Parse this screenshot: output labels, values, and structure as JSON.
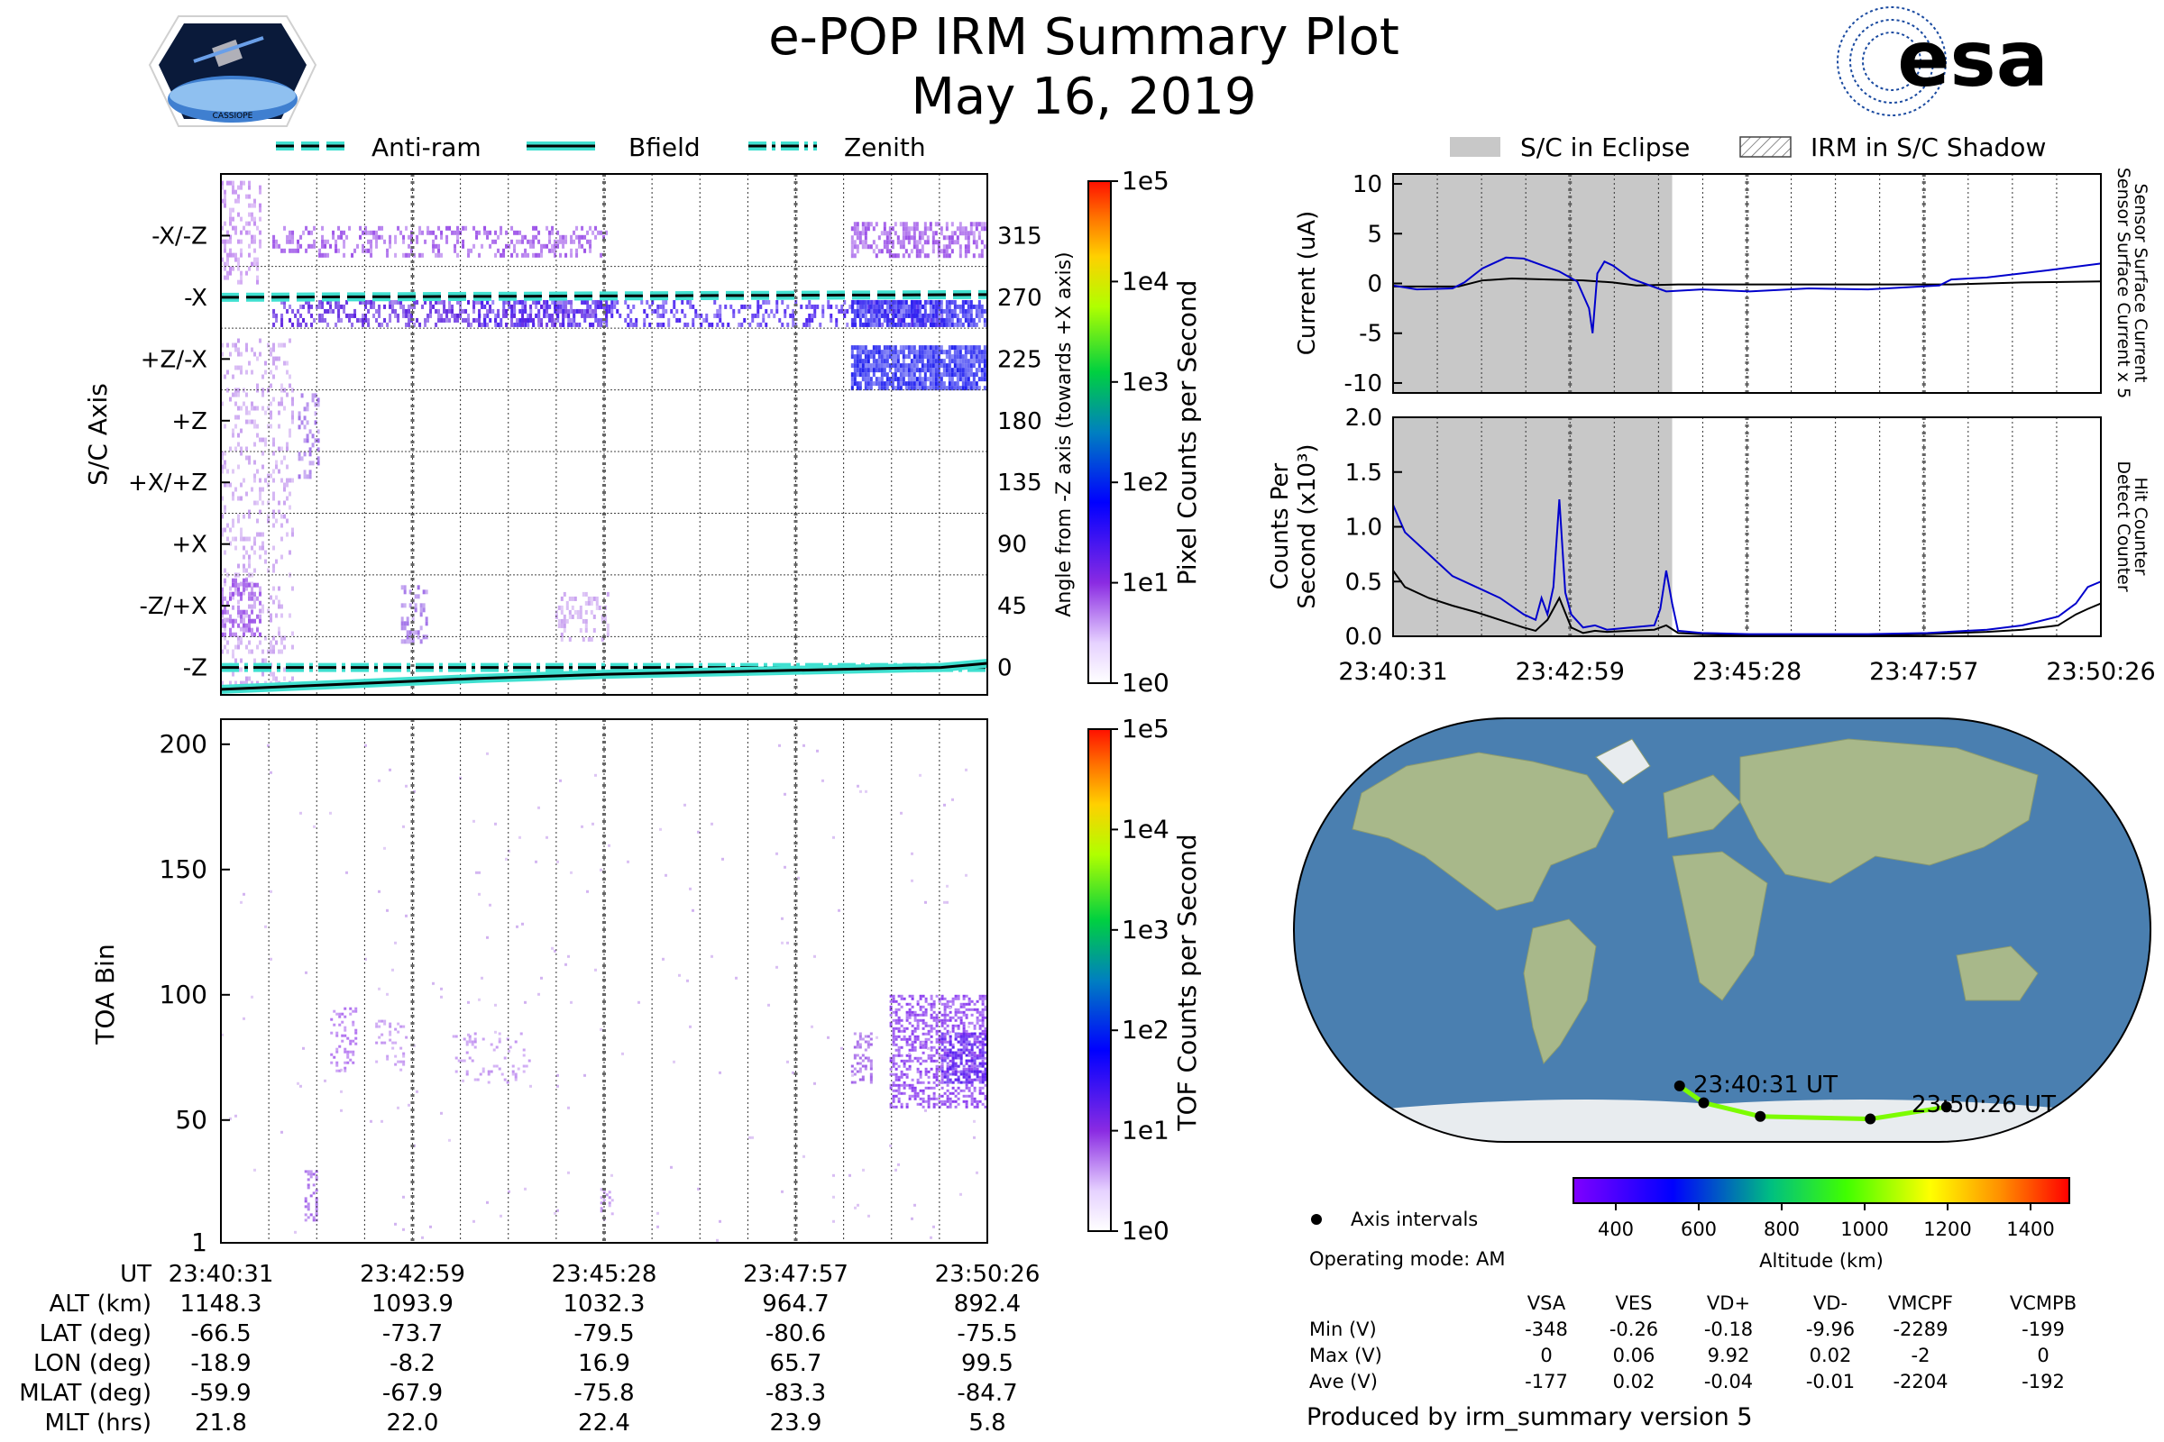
{
  "header": {
    "title": "e-POP IRM Summary Plot",
    "date": "May 16, 2019",
    "left_logo_text": "CASSIOPE",
    "right_logo_text": "esa"
  },
  "legend_top_left": {
    "anti_ram": "Anti-ram",
    "bfield": "Bfield",
    "zenith": "Zenith"
  },
  "legend_top_right": {
    "eclipse": "S/C in Eclipse",
    "shadow": "IRM in S/C Shadow"
  },
  "colors": {
    "accent_teal": "#40e0d0",
    "eclipse_gray": "#c8c8c8",
    "sensor_blue": "#0000cc",
    "track_green": "#7cfc00",
    "counts_purple": "#8a2be2"
  },
  "chart_data": [
    {
      "id": "sc_axis",
      "type": "heatmap",
      "ylabel": "S/C Axis",
      "y2label": "Angle from -Z axis (towards +X axis)",
      "y_categories": [
        "-X/-Z",
        "-X",
        "+Z/-X",
        "+Z",
        "+X/+Z",
        "+X",
        "-Z/+X",
        "-Z"
      ],
      "y2_ticks": [
        "315",
        "270",
        "225",
        "180",
        "135",
        "90",
        "45",
        "0"
      ],
      "ylim": [
        -20,
        360
      ],
      "xlim": [
        0,
        596
      ],
      "colorbar": {
        "label": "Pixel Counts per Second",
        "ticks": [
          "1e5",
          "1e4",
          "1e3",
          "1e2",
          "1e1",
          "1e0"
        ]
      },
      "lines": [
        {
          "name": "Anti-ram",
          "x": [
            0,
            596
          ],
          "y": [
            270,
            272
          ]
        },
        {
          "name": "Zenith",
          "x": [
            0,
            596
          ],
          "y": [
            0,
            0
          ]
        },
        {
          "name": "Bfield",
          "x": [
            0,
            100,
            200,
            300,
            400,
            500,
            560,
            596
          ],
          "y": [
            -16,
            -12,
            -8,
            -5,
            -3,
            -1,
            0,
            3
          ]
        }
      ]
    },
    {
      "id": "toa",
      "type": "heatmap",
      "ylabel": "TOA Bin",
      "yticks": [
        1,
        50,
        100,
        150,
        200
      ],
      "ylim": [
        1,
        210
      ],
      "xlim": [
        0,
        596
      ],
      "colorbar": {
        "label": "TOF Counts per Second",
        "ticks": [
          "1e5",
          "1e4",
          "1e3",
          "1e2",
          "1e1",
          "1e0"
        ]
      }
    },
    {
      "id": "current",
      "type": "line",
      "ylabel": "Current (uA)",
      "yticks": [
        10,
        5,
        0,
        -5,
        -10
      ],
      "ylim": [
        -11,
        11
      ],
      "xlim": [
        0,
        596
      ],
      "right_labels": [
        "Sensor Surface Current x 5",
        "Sensor Surface Current"
      ],
      "series": [
        {
          "name": "Sensor Surface Current",
          "x": [
            0,
            55,
            75,
            100,
            130,
            160,
            185,
            205,
            240,
            300,
            360,
            420,
            470,
            530,
            596
          ],
          "y": [
            -0.3,
            -0.3,
            0.3,
            0.5,
            0.4,
            0.3,
            0.1,
            -0.2,
            -0.1,
            -0.1,
            -0.1,
            -0.1,
            -0.1,
            0.1,
            0.2
          ]
        },
        {
          "name": "Sensor Surface Current x 5",
          "x": [
            0,
            20,
            50,
            60,
            75,
            95,
            110,
            140,
            155,
            165,
            168,
            172,
            178,
            185,
            200,
            230,
            260,
            300,
            350,
            400,
            460,
            470,
            500,
            550,
            596
          ],
          "y": [
            -0.2,
            -0.6,
            -0.5,
            0.1,
            1.5,
            2.6,
            2.5,
            1.2,
            0.2,
            -2.5,
            -5.0,
            1.0,
            2.2,
            1.8,
            0.5,
            -0.8,
            -0.6,
            -0.8,
            -0.5,
            -0.6,
            -0.2,
            0.4,
            0.6,
            1.3,
            2.0
          ]
        }
      ]
    },
    {
      "id": "counts",
      "type": "line",
      "ylabel": "Counts Per Second (x10³)",
      "yticks": [
        "2.0",
        "1.5",
        "1.0",
        "0.5",
        "0.0"
      ],
      "ylim": [
        0,
        2.0
      ],
      "xlim": [
        0,
        596
      ],
      "right_labels": [
        "Detect Counter",
        "Hit Counter"
      ],
      "xticks": [
        "23:40:31",
        "23:42:59",
        "23:45:28",
        "23:47:57",
        "23:50:26"
      ],
      "series": [
        {
          "name": "Hit Counter",
          "x": [
            0,
            10,
            30,
            50,
            70,
            90,
            110,
            120,
            130,
            140,
            150,
            160,
            170,
            180,
            200,
            220,
            230,
            240,
            260,
            300,
            400,
            450,
            500,
            530,
            560,
            575,
            585,
            596
          ],
          "y": [
            0.6,
            0.45,
            0.35,
            0.28,
            0.22,
            0.15,
            0.08,
            0.05,
            0.15,
            0.35,
            0.08,
            0.03,
            0.05,
            0.04,
            0.05,
            0.06,
            0.1,
            0.03,
            0.02,
            0.01,
            0.01,
            0.02,
            0.04,
            0.06,
            0.1,
            0.2,
            0.25,
            0.3
          ]
        },
        {
          "name": "Detect Counter",
          "x": [
            0,
            10,
            30,
            50,
            70,
            90,
            110,
            120,
            125,
            130,
            135,
            140,
            145,
            150,
            160,
            170,
            180,
            200,
            220,
            225,
            230,
            235,
            240,
            260,
            300,
            400,
            450,
            500,
            530,
            560,
            575,
            585,
            596
          ],
          "y": [
            1.2,
            0.95,
            0.75,
            0.55,
            0.45,
            0.35,
            0.2,
            0.15,
            0.35,
            0.2,
            0.45,
            1.25,
            0.4,
            0.2,
            0.08,
            0.1,
            0.06,
            0.08,
            0.1,
            0.25,
            0.6,
            0.3,
            0.05,
            0.03,
            0.02,
            0.02,
            0.03,
            0.06,
            0.1,
            0.18,
            0.3,
            0.45,
            0.5
          ]
        }
      ]
    },
    {
      "id": "map",
      "type": "scatter",
      "start_label": "23:40:31 UT",
      "end_label": "23:50:26 UT",
      "points_lon": [
        -18.9,
        -8.2,
        16.9,
        65.7,
        99.5
      ],
      "points_lat": [
        -66.5,
        -73.7,
        -79.5,
        -80.6,
        -75.5
      ],
      "axis_intervals_label": "Axis intervals",
      "operating_mode": "Operating mode: AM",
      "altitude_colorbar": {
        "label": "Altitude (km)",
        "ticks": [
          "400",
          "600",
          "800",
          "1000",
          "1200",
          "1400"
        ]
      }
    }
  ],
  "ephemeris": {
    "labels": [
      "UT",
      "ALT (km)",
      "LAT (deg)",
      "LON (deg)",
      "MLAT (deg)",
      "MLT (hrs)"
    ],
    "columns": [
      [
        "23:40:31",
        "1148.3",
        "-66.5",
        "-18.9",
        "-59.9",
        "21.8"
      ],
      [
        "23:42:59",
        "1093.9",
        "-73.7",
        "-8.2",
        "-67.9",
        "22.0"
      ],
      [
        "23:45:28",
        "1032.3",
        "-79.5",
        "16.9",
        "-75.8",
        "22.4"
      ],
      [
        "23:47:57",
        "964.7",
        "-80.6",
        "65.7",
        "-83.3",
        "23.9"
      ],
      [
        "23:50:26",
        "892.4",
        "-75.5",
        "99.5",
        "-84.7",
        "5.8"
      ]
    ]
  },
  "voltage_table": {
    "headers": [
      "VSA",
      "VES",
      "VD+",
      "VD-",
      "VMCPF",
      "VCMPB"
    ],
    "rows": [
      {
        "label": "Min (V)",
        "values": [
          "-348",
          "-0.26",
          "-0.18",
          "-9.96",
          "-2289",
          "-199"
        ]
      },
      {
        "label": "Max (V)",
        "values": [
          "0",
          "0.06",
          "9.92",
          "0.02",
          "-2",
          "0"
        ]
      },
      {
        "label": "Ave (V)",
        "values": [
          "-177",
          "0.02",
          "-0.04",
          "-0.01",
          "-2204",
          "-192"
        ]
      }
    ]
  },
  "footer": "Produced by irm_summary version 5"
}
